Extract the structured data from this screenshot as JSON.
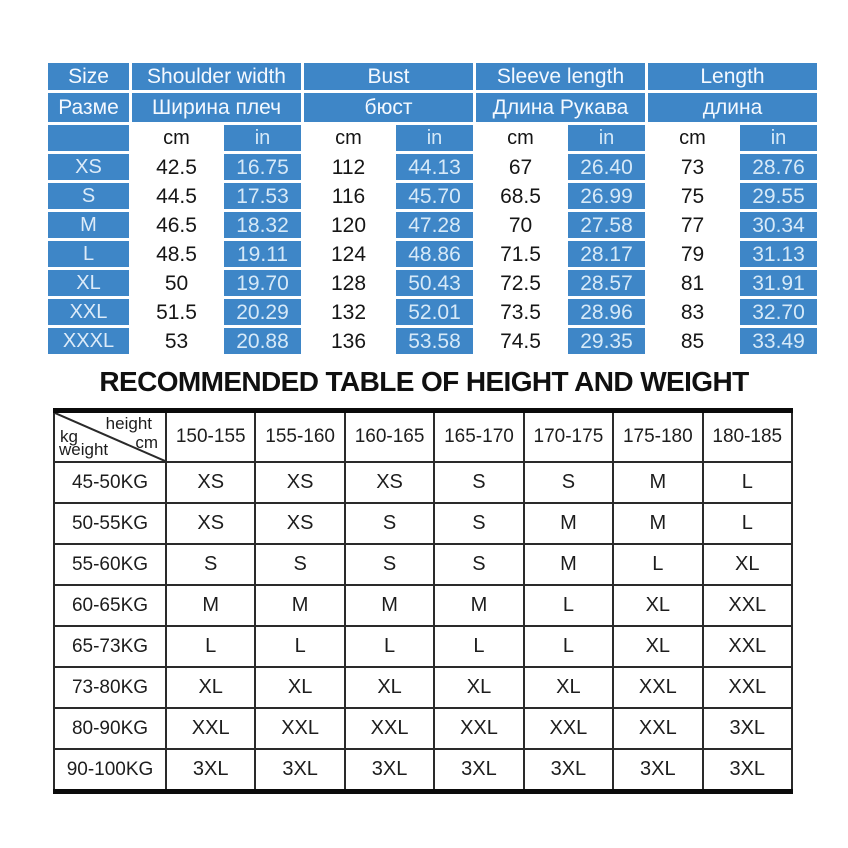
{
  "colors": {
    "table_blue": "#3e86c7",
    "light_cell_text": "#d6e9f8",
    "grid_line": "#2a2a2a",
    "thick_border": "#0b0b0b"
  },
  "heading": "RECOMMENDED TABLE OF HEIGHT AND WEIGHT",
  "size_table": {
    "columns": [
      {
        "en": "Size",
        "ru": "Разме"
      },
      {
        "en": "Shoulder width",
        "ru": "Ширина плеч"
      },
      {
        "en": "Bust",
        "ru": "бюст"
      },
      {
        "en": "Sleeve length",
        "ru": "Длина Рукава"
      },
      {
        "en": "Length",
        "ru": "длина"
      }
    ],
    "unit_cm": "cm",
    "unit_in": "in",
    "rows": [
      {
        "size": "XS",
        "values": [
          "42.5",
          "16.75",
          "112",
          "44.13",
          "67",
          "26.40",
          "73",
          "28.76"
        ]
      },
      {
        "size": "S",
        "values": [
          "44.5",
          "17.53",
          "116",
          "45.70",
          "68.5",
          "26.99",
          "75",
          "29.55"
        ]
      },
      {
        "size": "M",
        "values": [
          "46.5",
          "18.32",
          "120",
          "47.28",
          "70",
          "27.58",
          "77",
          "30.34"
        ]
      },
      {
        "size": "L",
        "values": [
          "48.5",
          "19.11",
          "124",
          "48.86",
          "71.5",
          "28.17",
          "79",
          "31.13"
        ]
      },
      {
        "size": "XL",
        "values": [
          "50",
          "19.70",
          "128",
          "50.43",
          "72.5",
          "28.57",
          "81",
          "31.91"
        ]
      },
      {
        "size": "XXL",
        "values": [
          "51.5",
          "20.29",
          "132",
          "52.01",
          "73.5",
          "28.96",
          "83",
          "32.70"
        ]
      },
      {
        "size": "XXXL",
        "values": [
          "53",
          "20.88",
          "136",
          "53.58",
          "74.5",
          "29.35",
          "85",
          "33.49"
        ]
      }
    ]
  },
  "fit_table": {
    "corner": {
      "top_label": "height",
      "top_unit": "cm",
      "left_unit": "kg",
      "left_label": "weight"
    },
    "height_columns": [
      "150-155",
      "155-160",
      "160-165",
      "165-170",
      "170-175",
      "175-180",
      "180-185"
    ],
    "rows": [
      {
        "weight": "45-50KG",
        "sizes": [
          "XS",
          "XS",
          "XS",
          "S",
          "S",
          "M",
          "L"
        ]
      },
      {
        "weight": "50-55KG",
        "sizes": [
          "XS",
          "XS",
          "S",
          "S",
          "M",
          "M",
          "L"
        ]
      },
      {
        "weight": "55-60KG",
        "sizes": [
          "S",
          "S",
          "S",
          "S",
          "M",
          "L",
          "XL"
        ]
      },
      {
        "weight": "60-65KG",
        "sizes": [
          "M",
          "M",
          "M",
          "M",
          "L",
          "XL",
          "XXL"
        ]
      },
      {
        "weight": "65-73KG",
        "sizes": [
          "L",
          "L",
          "L",
          "L",
          "L",
          "XL",
          "XXL"
        ]
      },
      {
        "weight": "73-80KG",
        "sizes": [
          "XL",
          "XL",
          "XL",
          "XL",
          "XL",
          "XXL",
          "XXL"
        ]
      },
      {
        "weight": "80-90KG",
        "sizes": [
          "XXL",
          "XXL",
          "XXL",
          "XXL",
          "XXL",
          "XXL",
          "3XL"
        ]
      },
      {
        "weight": "90-100KG",
        "sizes": [
          "3XL",
          "3XL",
          "3XL",
          "3XL",
          "3XL",
          "3XL",
          "3XL"
        ]
      }
    ]
  }
}
